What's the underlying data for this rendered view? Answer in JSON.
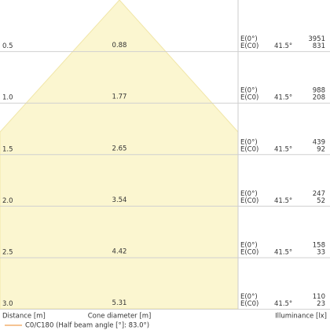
{
  "diagram": {
    "rows": [
      {
        "distance": "0.5",
        "diameter": "0.88",
        "e0_label": "E(0°)",
        "ec0_label": "E(C0)",
        "angle": "41.5°",
        "e0": "3951",
        "ec0": "831"
      },
      {
        "distance": "1.0",
        "diameter": "1.77",
        "e0_label": "E(0°)",
        "ec0_label": "E(C0)",
        "angle": "41.5°",
        "e0": "988",
        "ec0": "208"
      },
      {
        "distance": "1.5",
        "diameter": "2.65",
        "e0_label": "E(0°)",
        "ec0_label": "E(C0)",
        "angle": "41.5°",
        "e0": "439",
        "ec0": "92"
      },
      {
        "distance": "2.0",
        "diameter": "3.54",
        "e0_label": "E(0°)",
        "ec0_label": "E(C0)",
        "angle": "41.5°",
        "e0": "247",
        "ec0": "52"
      },
      {
        "distance": "2.5",
        "diameter": "4.42",
        "e0_label": "E(0°)",
        "ec0_label": "E(C0)",
        "angle": "41.5°",
        "e0": "158",
        "ec0": "33"
      },
      {
        "distance": "3.0",
        "diameter": "5.31",
        "e0_label": "E(0°)",
        "ec0_label": "E(C0)",
        "angle": "41.5°",
        "e0": "110",
        "ec0": "23"
      }
    ],
    "footer": {
      "distance": "Distance [m]",
      "diameter": "Cone diameter [m]",
      "illuminance": "Illuminance [lx]"
    },
    "legend": "C0/C180 (Half beam angle [°]: 83.0°)"
  }
}
